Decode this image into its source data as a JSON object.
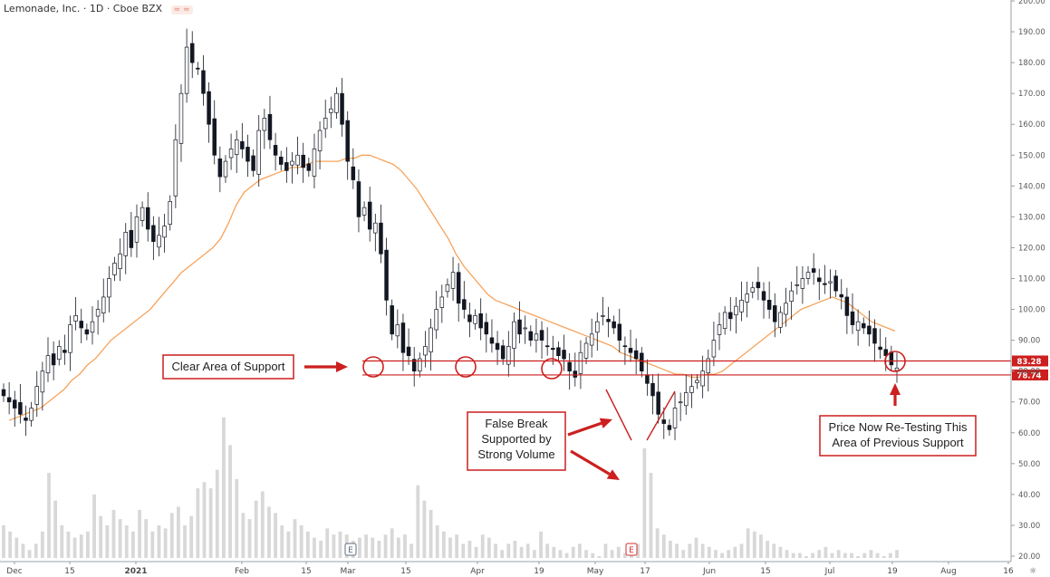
{
  "header": {
    "title": "Lemonade, Inc. · 1D · Cboe BZX",
    "badge": "≈ ≈"
  },
  "colors": {
    "up": "#ffffff",
    "down": "#131722",
    "candle_border": "#131722",
    "ma": "#f7a35c",
    "volume": "#d8d8d8",
    "annotation": "#cc1f1f",
    "axis": "#9aa0a6",
    "grid": "#ececec"
  },
  "chart_data": {
    "type": "candlestick",
    "title": "Lemonade, Inc. · 1D · Cboe BZX",
    "ylim": [
      20,
      200
    ],
    "y_ticks": [
      20,
      30,
      40,
      50,
      60,
      70,
      80,
      90,
      100,
      110,
      120,
      130,
      140,
      150,
      160,
      170,
      180,
      190,
      200
    ],
    "y_tick_labels": [
      "20.00",
      "30.00",
      "40.00",
      "50.00",
      "60.00",
      "70.00",
      "80.00",
      "90.00",
      "100.00",
      "110.00",
      "120.00",
      "130.00",
      "140.00",
      "150.00",
      "160.00",
      "170.00",
      "180.00",
      "190.00",
      "200.00"
    ],
    "x_tick_labels": [
      "Dec",
      "15",
      "2021",
      "Feb",
      "15",
      "Mar",
      "15",
      "Apr",
      "19",
      "May",
      "17",
      "Jun",
      "15",
      "Jul",
      "19",
      "Aug",
      "16"
    ],
    "series": [
      {
        "name": "Price",
        "closes": [
          72,
          70,
          68,
          66,
          64,
          68,
          75,
          80,
          85,
          82,
          88,
          86,
          95,
          98,
          94,
          92,
          96,
          100,
          104,
          110,
          115,
          118,
          125,
          120,
          130,
          133,
          126,
          122,
          124,
          127,
          135,
          155,
          170,
          185,
          180,
          178,
          170,
          160,
          150,
          143,
          148,
          152,
          155,
          152,
          148,
          145,
          158,
          162,
          155,
          150,
          147,
          145,
          148,
          150,
          146,
          145,
          152,
          158,
          162,
          165,
          170,
          160,
          148,
          142,
          130,
          133,
          126,
          128,
          118,
          103,
          92,
          95,
          86,
          85,
          80,
          84,
          88,
          94,
          100,
          104,
          108,
          112,
          102,
          100,
          96,
          98,
          94,
          92,
          89,
          87,
          84,
          88,
          96,
          92,
          94,
          90,
          92,
          90,
          88,
          87,
          85,
          84,
          80,
          78,
          86,
          89,
          92,
          96,
          98,
          96,
          94,
          90,
          88,
          86,
          84,
          80,
          76,
          72,
          66,
          63,
          61,
          68,
          70,
          73,
          75,
          77,
          80,
          84,
          90,
          95,
          99,
          97,
          101,
          103,
          105,
          107,
          107,
          103,
          100,
          96,
          99,
          102,
          106,
          108,
          110,
          112,
          112,
          109,
          108,
          109,
          106,
          104,
          98,
          95,
          96,
          94,
          92,
          89,
          87,
          85,
          82,
          81
        ],
        "ma": [
          64,
          65,
          66,
          67,
          68,
          70,
          72,
          74,
          77,
          79,
          82,
          84,
          87,
          90,
          92,
          94,
          96,
          98,
          100,
          103,
          106,
          109,
          112,
          114,
          116,
          118,
          120,
          123,
          128,
          134,
          138,
          140,
          142,
          143,
          144,
          145,
          146,
          146,
          147,
          148,
          148,
          148,
          148,
          149,
          149,
          150,
          150,
          149,
          148,
          147,
          145,
          142,
          139,
          135,
          131,
          127,
          123,
          118,
          114,
          111,
          108,
          105,
          103,
          102,
          101,
          100,
          99,
          98,
          97,
          96,
          95,
          94,
          93,
          92,
          91,
          90,
          89,
          88,
          86,
          85,
          84,
          83,
          82,
          81,
          80,
          79,
          79,
          78,
          78,
          79,
          79,
          80,
          82,
          84,
          86,
          88,
          90,
          92,
          94,
          96,
          98,
          100,
          101,
          102,
          103,
          104,
          103,
          102,
          100,
          98,
          96,
          95,
          94,
          93
        ]
      },
      {
        "name": "Volume",
        "values": [
          30,
          28,
          26,
          24,
          22,
          24,
          28,
          47,
          38,
          30,
          28,
          26,
          27,
          28,
          40,
          33,
          30,
          35,
          32,
          30,
          28,
          35,
          32,
          28,
          30,
          29,
          34,
          36,
          30,
          33,
          42,
          44,
          42,
          48,
          65,
          56,
          45,
          34,
          32,
          38,
          41,
          36,
          34,
          30,
          28,
          32,
          30,
          28,
          26,
          25,
          29,
          27,
          28,
          27,
          25,
          26,
          27,
          26,
          25,
          27,
          29,
          26,
          27,
          24,
          43,
          38,
          35,
          30,
          28,
          26,
          27,
          24,
          25,
          23,
          27,
          26,
          24,
          22,
          24,
          25,
          23,
          24,
          22,
          28,
          24,
          23,
          22,
          21,
          23,
          24,
          22,
          21,
          20,
          24,
          22,
          23,
          21,
          22,
          24,
          55,
          47,
          29,
          27,
          25,
          24,
          22,
          24,
          26,
          24,
          23,
          22,
          21,
          22,
          23,
          24,
          29,
          28,
          27,
          25,
          24,
          23,
          22,
          21,
          21,
          20,
          21,
          22,
          23,
          21,
          22,
          21,
          21,
          20,
          21,
          22,
          21,
          20,
          21,
          22
        ]
      }
    ],
    "price_lines": [
      {
        "label": "83.28",
        "value": 83.28
      },
      {
        "label": "78.74",
        "value": 78.74
      }
    ],
    "annotations": [
      {
        "text": "Clear Area of Support"
      },
      {
        "lines": [
          "False Break",
          "Supported by",
          "Strong Volume"
        ]
      },
      {
        "lines": [
          "Price Now Re-Testing This",
          "Area of Previous Support"
        ]
      }
    ],
    "earnings_markers": [
      "E",
      "E"
    ]
  }
}
